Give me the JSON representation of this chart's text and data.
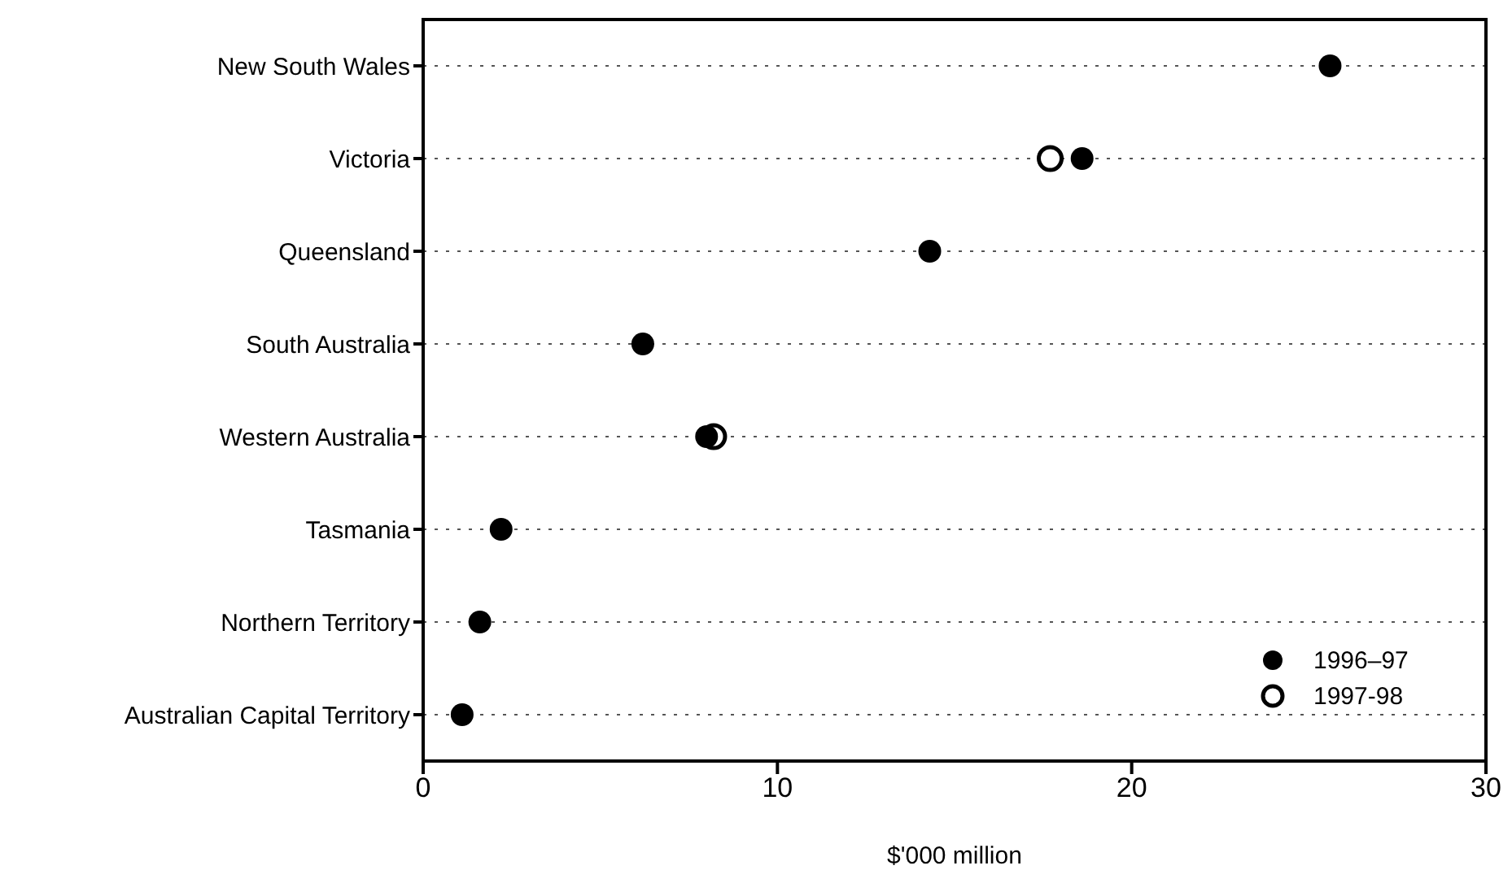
{
  "chart_data": {
    "type": "scatter",
    "orientation": "horizontal",
    "xlabel": "$'000 million",
    "categories": [
      "New South Wales",
      "Victoria",
      "Queensland",
      "South Australia",
      "Western Australia",
      "Tasmania",
      "Northern Territory",
      "Australian Capital Territory"
    ],
    "series": [
      {
        "name": "1997-98",
        "color": "#ffffff",
        "values": [
          null,
          17.7,
          null,
          null,
          8.2,
          null,
          null,
          null
        ]
      },
      {
        "name": "1996–97",
        "color": "#000000",
        "values": [
          25.6,
          18.6,
          14.3,
          6.2,
          8.0,
          2.2,
          1.6,
          1.1
        ]
      }
    ],
    "xlim": [
      0,
      30
    ],
    "xticks": [
      0,
      10,
      20,
      30
    ],
    "grid": "y",
    "marker": "circle",
    "legend": "bottom right"
  }
}
